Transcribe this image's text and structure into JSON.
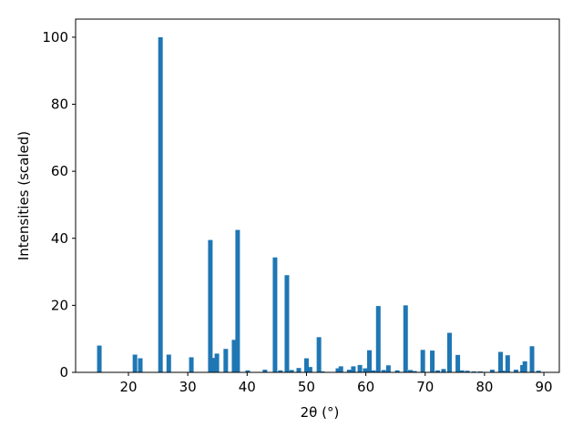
{
  "chart_data": {
    "type": "bar",
    "xlabel": "2θ (°)",
    "ylabel": "Intensities (scaled)",
    "color": "#1f77b4",
    "x": [
      15.1,
      21.1,
      22.0,
      25.4,
      26.8,
      30.6,
      33.8,
      34.4,
      34.9,
      36.4,
      37.8,
      38.4,
      40.1,
      43.0,
      44.7,
      45.6,
      46.7,
      47.5,
      48.7,
      50.0,
      50.6,
      52.1,
      52.7,
      55.3,
      55.8,
      57.2,
      57.9,
      59.0,
      59.9,
      60.6,
      61.3,
      62.1,
      63.0,
      63.8,
      65.3,
      66.7,
      67.5,
      68.2,
      69.6,
      71.2,
      72.1,
      73.1,
      74.1,
      75.5,
      76.2,
      77.1,
      78.2,
      79.3,
      81.3,
      82.7,
      83.1,
      83.9,
      85.3,
      86.4,
      86.8,
      88.0,
      89.1
    ],
    "values": [
      8,
      5.3,
      4.2,
      100,
      5.3,
      4.5,
      39.5,
      4.3,
      5.6,
      7,
      9.7,
      42.5,
      0.6,
      0.8,
      34.3,
      0.6,
      29,
      0.7,
      1.3,
      4.2,
      1.6,
      10.5,
      0.3,
      1.2,
      1.8,
      0.8,
      1.8,
      2.2,
      1.2,
      6.6,
      0.6,
      19.8,
      0.7,
      2.1,
      0.6,
      20,
      0.7,
      0.4,
      6.7,
      6.5,
      0.6,
      1.0,
      11.8,
      5.2,
      0.6,
      0.5,
      0.3,
      0.3,
      0.8,
      6.1,
      0.5,
      5.1,
      0.8,
      2.2,
      3.3,
      7.8,
      0.5
    ],
    "xlim": [
      11.1,
      92.6
    ],
    "xticks": [
      20,
      30,
      40,
      50,
      60,
      70,
      80,
      90
    ],
    "ylim": [
      0,
      105.4
    ],
    "yticks": [
      0,
      20,
      40,
      60,
      80,
      100
    ]
  }
}
